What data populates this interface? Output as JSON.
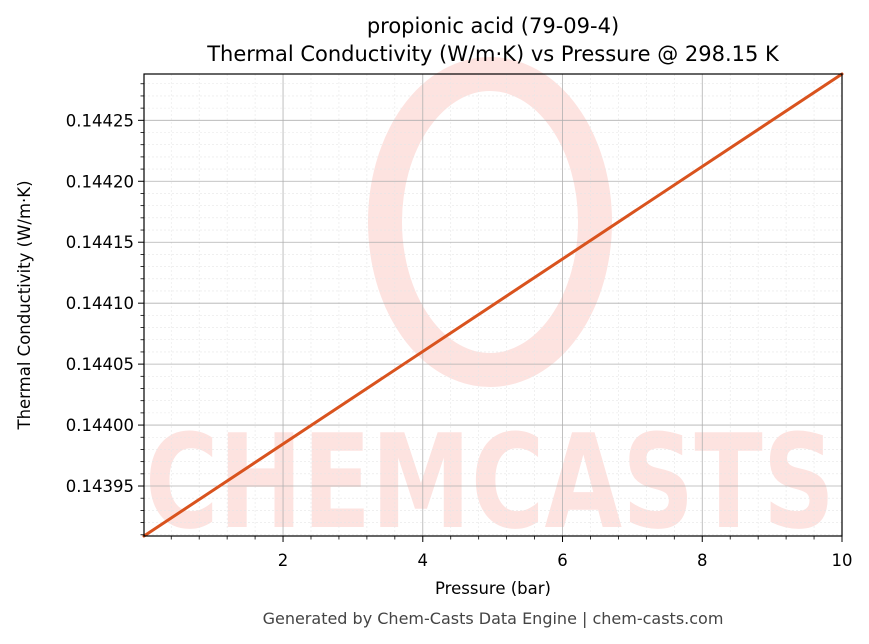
{
  "chart_data": {
    "type": "line",
    "title": "propionic acid (79-09-4)",
    "subtitle": "Thermal Conductivity (W/m·K) vs Pressure @ 298.15 K",
    "xlabel": "Pressure (bar)",
    "ylabel": "Thermal Conductivity (W/m·K)",
    "xlim": [
      0.01,
      10
    ],
    "ylim": [
      0.143909,
      0.144288
    ],
    "x_ticks": [
      2,
      4,
      6,
      8,
      10
    ],
    "x_tick_labels": [
      "2",
      "4",
      "6",
      "8",
      "10"
    ],
    "y_ticks": [
      0.14395,
      0.144,
      0.14405,
      0.1441,
      0.14415,
      0.1442,
      0.14425
    ],
    "y_tick_labels": [
      "0.14395",
      "0.14400",
      "0.14405",
      "0.14410",
      "0.14415",
      "0.14420",
      "0.14425"
    ],
    "grid": true,
    "series": [
      {
        "color": "#d9531e",
        "x": [
          0.01,
          10
        ],
        "y": [
          0.143909,
          0.144288
        ]
      }
    ]
  },
  "watermark": {
    "text": "CHEMCASTS",
    "color": "#fde3e0"
  },
  "footer": {
    "text": "Generated by Chem-Casts Data Engine | chem-casts.com"
  }
}
